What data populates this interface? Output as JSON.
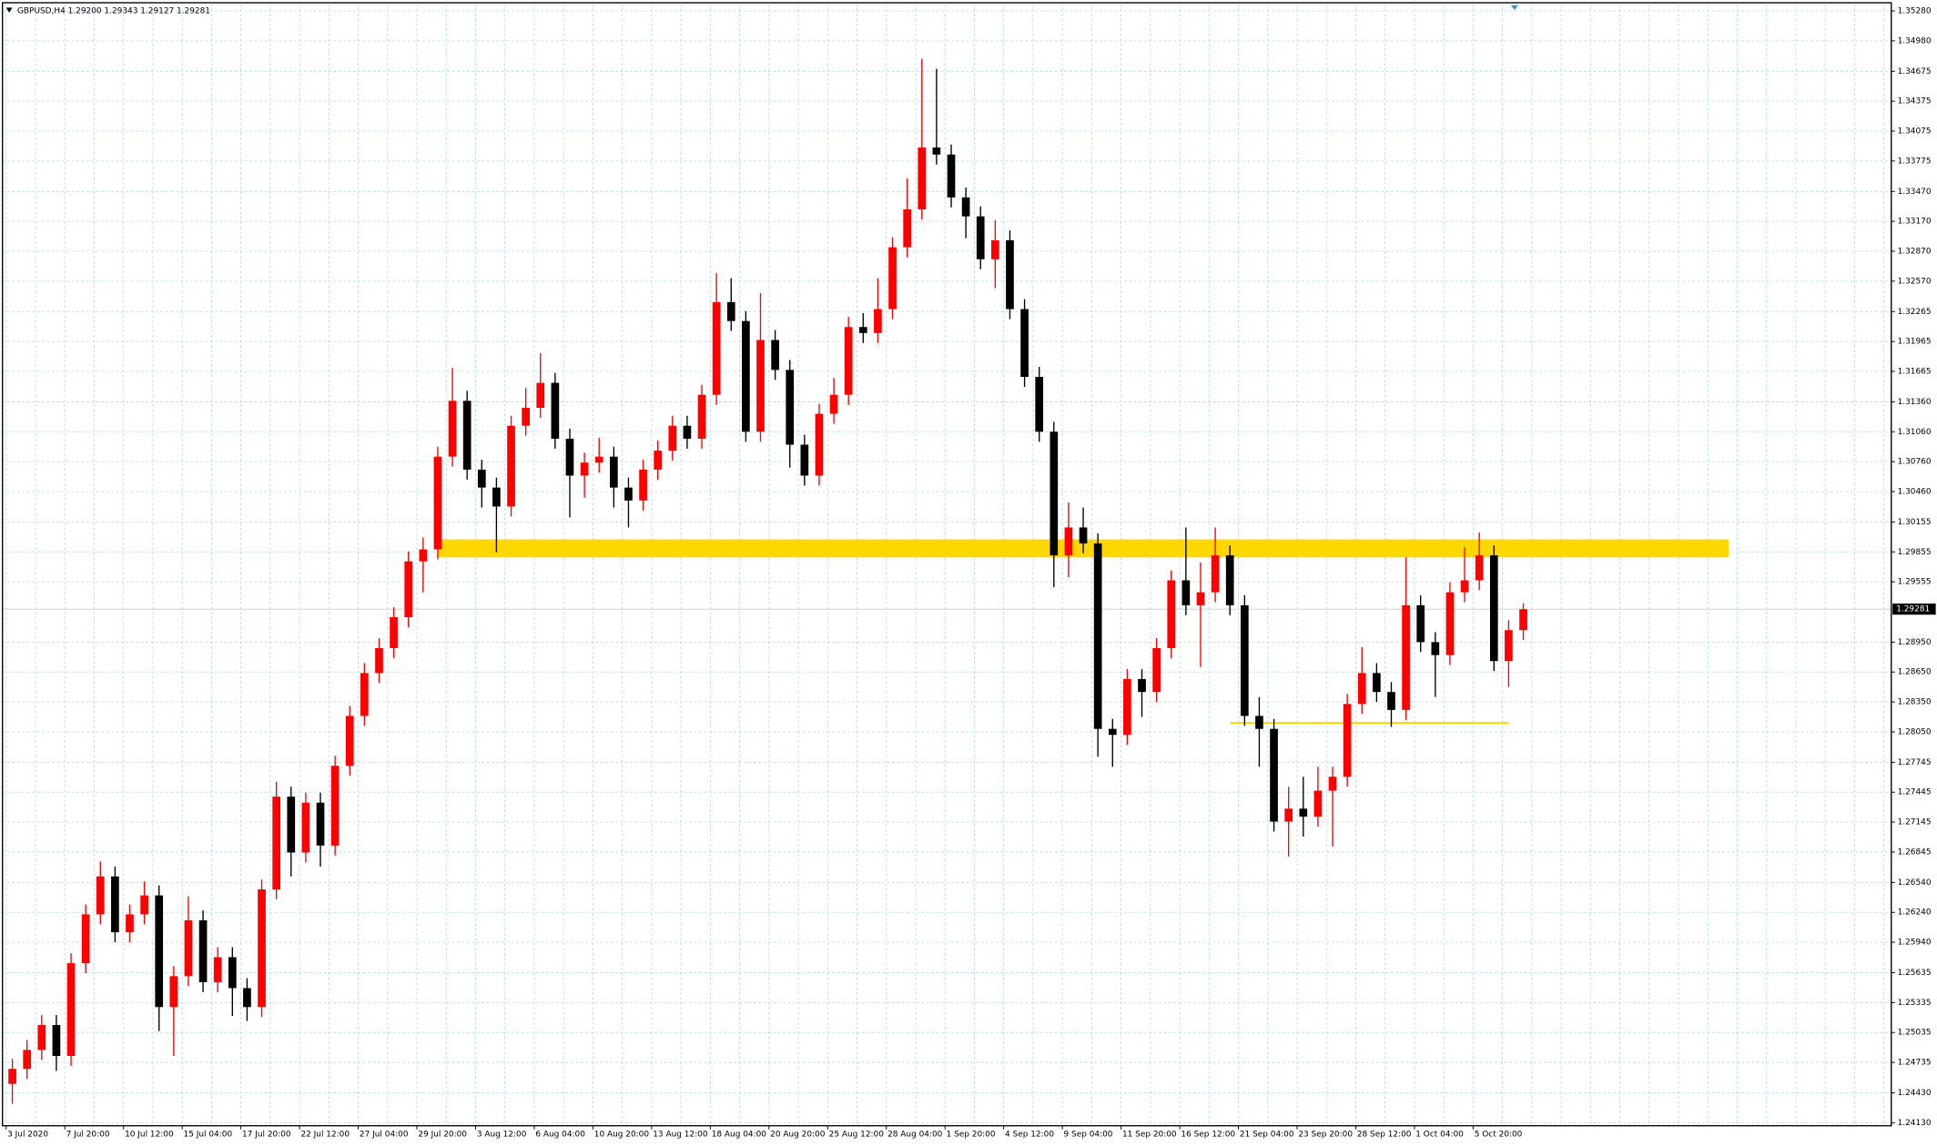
{
  "chart_data": {
    "type": "candlestick",
    "info": "GBPUSD,H4  1.29200 1.29343 1.29127 1.29281",
    "categories": [
      "3 Jul 2020",
      null,
      null,
      null,
      "7 Jul 20:00",
      null,
      null,
      null,
      "10 Jul 12:00",
      null,
      null,
      null,
      "15 Jul 04:00",
      null,
      null,
      null,
      "17 Jul 20:00",
      null,
      null,
      null,
      "22 Jul 12:00",
      null,
      null,
      null,
      "27 Jul 04:00",
      null,
      null,
      null,
      "29 Jul 20:00",
      null,
      null,
      null,
      "3 Aug 12:00",
      null,
      null,
      null,
      "6 Aug 04:00",
      null,
      null,
      null,
      "10 Aug 20:00",
      null,
      null,
      null,
      "13 Aug 12:00",
      null,
      null,
      null,
      "18 Aug 04:00",
      null,
      null,
      null,
      "20 Aug 20:00",
      null,
      null,
      null,
      "25 Aug 12:00",
      null,
      null,
      null,
      "28 Aug 04:00",
      null,
      null,
      null,
      "1 Sep 20:00",
      null,
      null,
      null,
      "4 Sep 12:00",
      null,
      null,
      null,
      "9 Sep 04:00",
      null,
      null,
      null,
      "11 Sep 20:00",
      null,
      null,
      null,
      "16 Sep 12:00",
      null,
      null,
      null,
      "21 Sep 04:00",
      null,
      null,
      null,
      "23 Sep 20:00",
      null,
      null,
      null,
      "28 Sep 12:00",
      null,
      null,
      null,
      "1 Oct 04:00",
      null,
      null,
      null,
      "5 Oct 20:00",
      null,
      null,
      null
    ],
    "open": [
      1.2452,
      1.2467,
      1.2486,
      1.2511,
      1.248,
      1.2573,
      1.2622,
      1.266,
      1.2604,
      1.2622,
      1.2641,
      1.2529,
      1.256,
      1.2616,
      1.2554,
      1.2579,
      1.2548,
      1.2529,
      1.2647,
      1.274,
      1.2684,
      1.2734,
      1.2691,
      1.2771,
      1.2821,
      1.2864,
      1.2889,
      1.292,
      1.2976,
      1.2988,
      1.3081,
      1.3137,
      1.3068,
      1.305,
      1.3031,
      1.3112,
      1.313,
      1.3155,
      1.3099,
      1.3062,
      1.3075,
      1.3081,
      1.305,
      1.3037,
      1.3068,
      1.3087,
      1.3112,
      1.3099,
      1.3143,
      1.3236,
      1.3217,
      1.3106,
      1.3198,
      1.3168,
      1.3093,
      1.3062,
      1.3124,
      1.3143,
      1.3211,
      1.3205,
      1.3229,
      1.3291,
      1.3329,
      1.3391,
      1.3384,
      1.3341,
      1.3322,
      1.3279,
      1.3298,
      1.3229,
      1.3161,
      1.3106,
      1.2982,
      1.301,
      1.2994,
      1.2808,
      1.2802,
      1.2858,
      1.2845,
      1.2889,
      1.2957,
      1.2932,
      1.2945,
      1.2982,
      1.2932,
      1.2821,
      1.2808,
      1.2715,
      1.2728,
      1.272,
      1.2746,
      1.276,
      1.2833,
      1.2864,
      1.2845,
      1.2827,
      1.2932,
      1.2895,
      1.2882,
      1.2945,
      1.2957,
      1.2982,
      1.2876,
      1.2907
    ],
    "high": [
      1.2477,
      1.2496,
      1.2521,
      1.2521,
      1.2583,
      1.2632,
      1.2675,
      1.267,
      1.2632,
      1.2655,
      1.2651,
      1.257,
      1.264,
      1.2626,
      1.2589,
      1.2589,
      1.2558,
      1.2657,
      1.2755,
      1.275,
      1.2744,
      1.2744,
      1.2781,
      1.2831,
      1.2874,
      1.2899,
      1.293,
      1.2986,
      1.3,
      1.3091,
      1.317,
      1.3147,
      1.3078,
      1.306,
      1.3122,
      1.315,
      1.3185,
      1.3165,
      1.3109,
      1.3085,
      1.31,
      1.3091,
      1.306,
      1.3078,
      1.3097,
      1.3122,
      1.3122,
      1.3153,
      1.3265,
      1.326,
      1.3227,
      1.3245,
      1.3208,
      1.3178,
      1.3103,
      1.3134,
      1.316,
      1.3221,
      1.3225,
      1.326,
      1.3301,
      1.336,
      1.348,
      1.347,
      1.3394,
      1.3351,
      1.3332,
      1.3318,
      1.3308,
      1.3239,
      1.3171,
      1.3116,
      1.3035,
      1.303,
      1.3004,
      1.2818,
      1.2868,
      1.2868,
      1.2899,
      1.2967,
      1.301,
      1.2975,
      1.301,
      1.2992,
      1.2942,
      1.284,
      1.2818,
      1.275,
      1.276,
      1.277,
      1.277,
      1.2843,
      1.289,
      1.2874,
      1.2855,
      1.298,
      1.2942,
      1.2905,
      1.2955,
      1.299,
      1.3005,
      1.2992,
      1.2917,
      1.2934
    ],
    "low": [
      1.2432,
      1.2457,
      1.2476,
      1.2465,
      1.247,
      1.2563,
      1.2612,
      1.2594,
      1.2594,
      1.2612,
      1.2505,
      1.248,
      1.255,
      1.2544,
      1.2544,
      1.252,
      1.2515,
      1.2519,
      1.2637,
      1.266,
      1.2674,
      1.267,
      1.2681,
      1.2761,
      1.2811,
      1.2854,
      1.2879,
      1.291,
      1.2945,
      1.2978,
      1.3071,
      1.3058,
      1.303,
      1.2985,
      1.3021,
      1.3102,
      1.312,
      1.3089,
      1.302,
      1.304,
      1.3065,
      1.303,
      1.301,
      1.3027,
      1.3058,
      1.3077,
      1.3089,
      1.3089,
      1.3133,
      1.3207,
      1.3096,
      1.3096,
      1.3158,
      1.307,
      1.3052,
      1.3052,
      1.3114,
      1.3133,
      1.3195,
      1.3195,
      1.3219,
      1.3281,
      1.3319,
      1.3374,
      1.3331,
      1.33,
      1.3269,
      1.325,
      1.3219,
      1.3151,
      1.3096,
      1.295,
      1.296,
      1.2984,
      1.278,
      1.277,
      1.2792,
      1.282,
      1.2835,
      1.2879,
      1.2922,
      1.287,
      1.2935,
      1.2922,
      1.2811,
      1.277,
      1.2705,
      1.268,
      1.27,
      1.271,
      1.269,
      1.275,
      1.2823,
      1.2835,
      1.281,
      1.2817,
      1.2885,
      1.284,
      1.2872,
      1.2935,
      1.2947,
      1.2866,
      1.285,
      1.2897
    ],
    "close": [
      1.2467,
      1.2486,
      1.2511,
      1.248,
      1.2573,
      1.2622,
      1.266,
      1.2604,
      1.2622,
      1.2641,
      1.2529,
      1.256,
      1.2616,
      1.2554,
      1.2579,
      1.2548,
      1.2529,
      1.2647,
      1.274,
      1.2684,
      1.2734,
      1.2691,
      1.2771,
      1.2821,
      1.2864,
      1.2889,
      1.292,
      1.2976,
      1.2988,
      1.3081,
      1.3137,
      1.3068,
      1.305,
      1.3031,
      1.3112,
      1.313,
      1.3155,
      1.3099,
      1.3062,
      1.3075,
      1.3081,
      1.305,
      1.3037,
      1.3068,
      1.3087,
      1.3112,
      1.3099,
      1.3143,
      1.3236,
      1.3217,
      1.3106,
      1.3198,
      1.3168,
      1.3093,
      1.3062,
      1.3124,
      1.3143,
      1.3211,
      1.3205,
      1.3229,
      1.3291,
      1.3329,
      1.3391,
      1.3384,
      1.3341,
      1.3322,
      1.3279,
      1.3298,
      1.3229,
      1.3161,
      1.3106,
      1.2982,
      1.301,
      1.2994,
      1.2808,
      1.2802,
      1.2858,
      1.2845,
      1.2889,
      1.2957,
      1.2932,
      1.2945,
      1.2982,
      1.2932,
      1.2821,
      1.2808,
      1.2715,
      1.2728,
      1.272,
      1.2746,
      1.276,
      1.2833,
      1.2864,
      1.2845,
      1.2827,
      1.2932,
      1.2895,
      1.2882,
      1.2945,
      1.2957,
      1.2982,
      1.2876,
      1.2907,
      1.2928
    ],
    "up_color": "#ff0000",
    "down_color": "#000000",
    "ylim": [
      1.241,
      1.3535
    ],
    "yticks": [
      {
        "value": 1.3528,
        "label": "1.35280"
      },
      {
        "value": 1.3498,
        "label": "1.34980"
      },
      1.34675,
      1.34375,
      1.34075,
      1.33775,
      {
        "value": 1.3347,
        "label": "1.33470"
      },
      {
        "value": 1.3317,
        "label": "1.33170"
      },
      {
        "value": 1.3287,
        "label": "1.32870"
      },
      {
        "value": 1.3257,
        "label": "1.32570"
      },
      1.32265,
      1.31965,
      1.31665,
      {
        "value": 1.3136,
        "label": "1.31360"
      },
      {
        "value": 1.3106,
        "label": "1.31060"
      },
      {
        "value": 1.3076,
        "label": "1.30760"
      },
      {
        "value": 1.3046,
        "label": "1.30460"
      },
      1.30155,
      1.29855,
      1.29555,
      {
        "value": 1.2895,
        "label": "1.28950"
      },
      {
        "value": 1.2865,
        "label": "1.28650"
      },
      {
        "value": 1.2835,
        "label": "1.28350"
      },
      {
        "value": 1.2805,
        "label": "1.28050"
      },
      1.27745,
      1.27445,
      1.27145,
      1.26845,
      {
        "value": 1.2654,
        "label": "1.26540"
      },
      {
        "value": 1.2624,
        "label": "1.26240"
      },
      {
        "value": 1.2594,
        "label": "1.25940"
      },
      1.25635,
      1.25335,
      1.25035,
      1.24735,
      {
        "value": 1.2443,
        "label": "1.24430"
      },
      {
        "value": 1.2413,
        "label": "1.24130"
      }
    ],
    "current_price": 1.29281,
    "grid": true,
    "grid_color": "#a8d8ee",
    "zones": [
      {
        "from": 29,
        "to": 117,
        "top": 1.2998,
        "bottom": 1.298,
        "color": "#ffd700"
      }
    ],
    "lines": [
      {
        "from": 83,
        "to": 102,
        "value": 1.2814,
        "color": "#ffd700"
      }
    ]
  }
}
